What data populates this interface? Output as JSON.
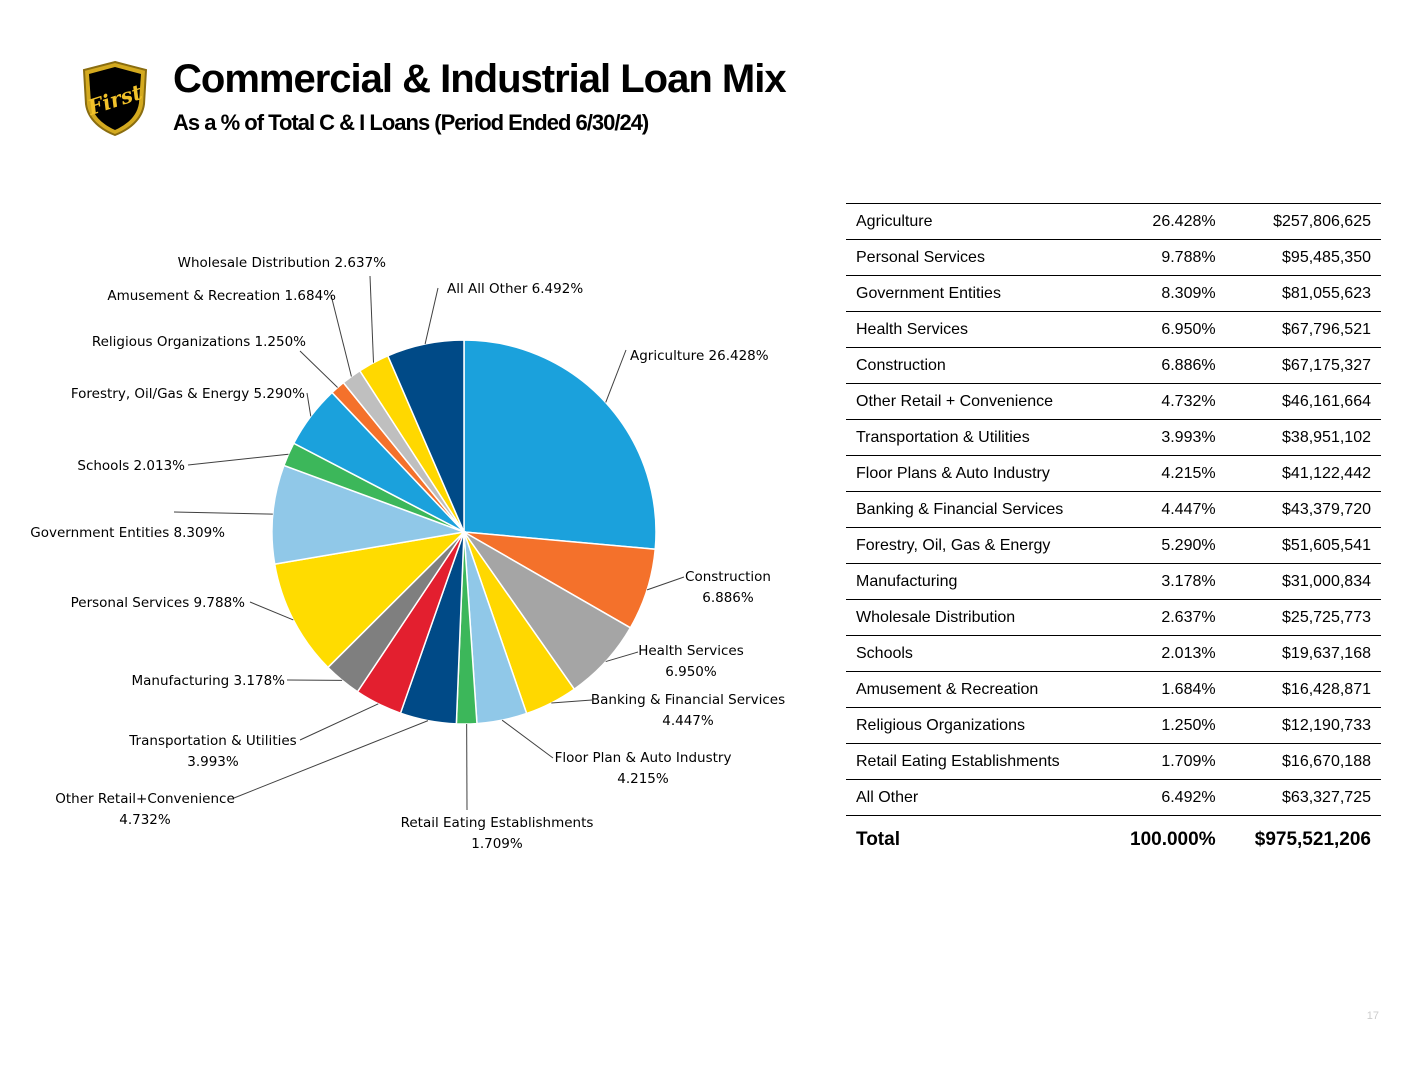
{
  "header": {
    "title": "Commercial & Industrial Loan Mix",
    "subtitle": "As a % of Total C & I Loans (Period Ended 6/30/24)",
    "logo_text": "First"
  },
  "chart_data": {
    "type": "pie",
    "start_angle": "top",
    "direction": "clockwise",
    "slices": [
      {
        "label": "Agriculture 26.428%",
        "value": 26.428,
        "color": "#1BA1DC"
      },
      {
        "label": "Construction\n6.886%",
        "value": 6.886,
        "color": "#F4712B"
      },
      {
        "label": "Health Services\n6.950%",
        "value": 6.95,
        "color": "#A5A5A5"
      },
      {
        "label": "Banking & Financial Services\n4.447%",
        "value": 4.447,
        "color": "#FFD800"
      },
      {
        "label": "Floor Plan & Auto Industry\n4.215%",
        "value": 4.215,
        "color": "#90C8E8"
      },
      {
        "label": "Retail Eating Establishments\n1.709%",
        "value": 1.709,
        "color": "#3CB75A"
      },
      {
        "label": "Other Retail+Convenience\n4.732%",
        "value": 4.732,
        "color": "#004A87"
      },
      {
        "label": "Transportation & Utilities\n3.993%",
        "value": 3.993,
        "color": "#E31F2F"
      },
      {
        "label": "Manufacturing 3.178%",
        "value": 3.178,
        "color": "#7F7F7F"
      },
      {
        "label": "Personal Services 9.788%",
        "value": 9.788,
        "color": "#FFDC00"
      },
      {
        "label": "Government Entities 8.309%",
        "value": 8.309,
        "color": "#90C8E8"
      },
      {
        "label": "Schools 2.013%",
        "value": 2.013,
        "color": "#3CB75A"
      },
      {
        "label": "Forestry, Oil/Gas & Energy 5.290%",
        "value": 5.29,
        "color": "#1BA1DC"
      },
      {
        "label": "Religious Organizations 1.250%",
        "value": 1.25,
        "color": "#F4712B"
      },
      {
        "label": "Amusement & Recreation 1.684%",
        "value": 1.684,
        "color": "#BFBFBF"
      },
      {
        "label": "Wholesale Distribution 2.637%",
        "value": 2.637,
        "color": "#FFD800"
      },
      {
        "label": "All All Other 6.492%",
        "value": 6.492,
        "color": "#004A87"
      }
    ]
  },
  "table": {
    "rows": [
      {
        "category": "Agriculture",
        "percent": "26.428%",
        "amount": "$257,806,625"
      },
      {
        "category": "Personal Services",
        "percent": "9.788%",
        "amount": "$95,485,350"
      },
      {
        "category": "Government Entities",
        "percent": "8.309%",
        "amount": "$81,055,623"
      },
      {
        "category": "Health Services",
        "percent": "6.950%",
        "amount": "$67,796,521"
      },
      {
        "category": "Construction",
        "percent": "6.886%",
        "amount": "$67,175,327"
      },
      {
        "category": "Other Retail + Convenience",
        "percent": "4.732%",
        "amount": "$46,161,664"
      },
      {
        "category": "Transportation & Utilities",
        "percent": "3.993%",
        "amount": "$38,951,102"
      },
      {
        "category": "Floor Plans & Auto Industry",
        "percent": "4.215%",
        "amount": "$41,122,442"
      },
      {
        "category": "Banking & Financial Services",
        "percent": "4.447%",
        "amount": "$43,379,720"
      },
      {
        "category": "Forestry, Oil, Gas & Energy",
        "percent": "5.290%",
        "amount": "$51,605,541"
      },
      {
        "category": "Manufacturing",
        "percent": "3.178%",
        "amount": "$31,000,834"
      },
      {
        "category": "Wholesale Distribution",
        "percent": "2.637%",
        "amount": "$25,725,773"
      },
      {
        "category": "Schools",
        "percent": "2.013%",
        "amount": "$19,637,168"
      },
      {
        "category": "Amusement & Recreation",
        "percent": "1.684%",
        "amount": "$16,428,871"
      },
      {
        "category": "Religious Organizations",
        "percent": "1.250%",
        "amount": "$12,190,733"
      },
      {
        "category": "Retail Eating Establishments",
        "percent": "1.709%",
        "amount": "$16,670,188"
      },
      {
        "category": "All Other",
        "percent": "6.492%",
        "amount": "$63,327,725"
      }
    ],
    "total": {
      "label": "Total",
      "percent": "100.000%",
      "amount": "$975,521,206"
    }
  },
  "footer": {
    "page_number": "17"
  }
}
